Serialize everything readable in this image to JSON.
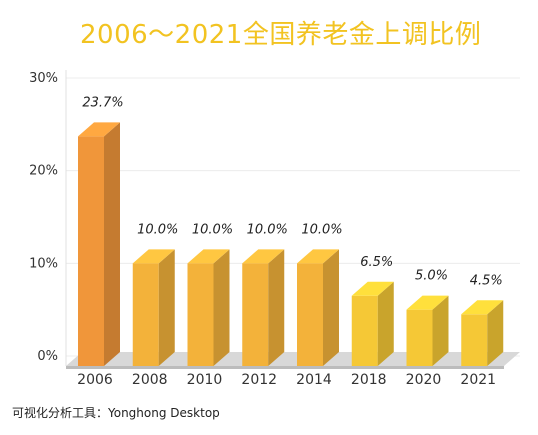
{
  "chart_data": {
    "type": "bar",
    "title": "2006～2021全国养老金上调比例",
    "categories": [
      "2006",
      "2008",
      "2010",
      "2012",
      "2014",
      "2018",
      "2020",
      "2021"
    ],
    "values": [
      23.7,
      10.0,
      10.0,
      10.0,
      10.0,
      6.5,
      5.0,
      4.5
    ],
    "data_labels": [
      "23.7%",
      "10.0%",
      "10.0%",
      "10.0%",
      "10.0%",
      "6.5%",
      "5.0%",
      "4.5%"
    ],
    "y_ticks": [
      "0%",
      "10%",
      "20%",
      "30%"
    ],
    "ylim": [
      0,
      30
    ],
    "grid": true,
    "bar_colors": {
      "2006": "#f0963a",
      "2008": "#f3b23a",
      "2010": "#f3b23a",
      "2012": "#f3b23a",
      "2014": "#f3b23a",
      "2018": "#f5c836",
      "2020": "#f5c836",
      "2021": "#f5c836"
    }
  },
  "footer": "可视化分析工具：Yonghong Desktop"
}
